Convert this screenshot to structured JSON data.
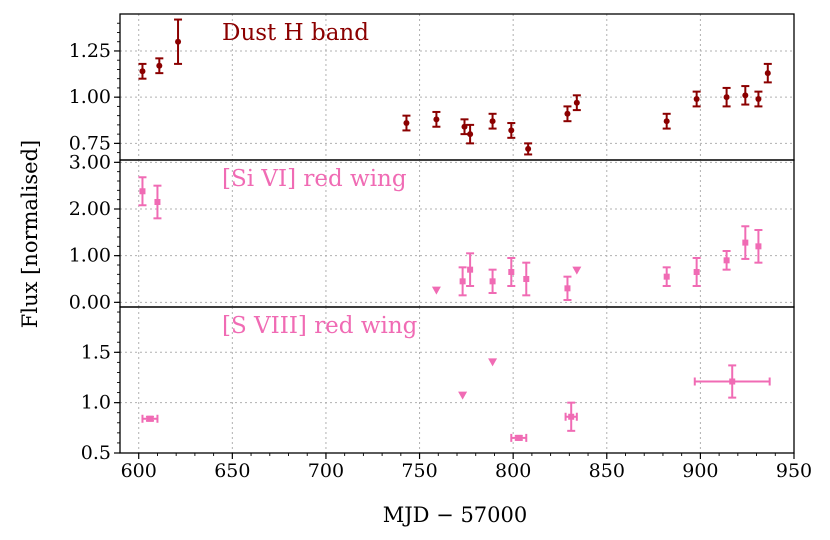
{
  "chart_data": {
    "type": "scatter",
    "xlabel": "MJD − 57000",
    "ylabel": "Flux [normalised]",
    "xlim": [
      590,
      950
    ],
    "x_ticks": [
      600,
      650,
      700,
      750,
      800,
      850,
      900,
      950
    ],
    "x_tick_labels": [
      "600",
      "650",
      "700",
      "750",
      "800",
      "850",
      "900",
      "950"
    ],
    "grid": true,
    "panels": [
      {
        "name": "dust-h-band",
        "title": "Dust H band",
        "color": "#8b0000",
        "ylim": [
          0.66,
          1.45
        ],
        "y_ticks": [
          0.75,
          1.0,
          1.25
        ],
        "y_tick_labels": [
          "0.75",
          "1.00",
          "1.25"
        ],
        "points": [
          {
            "x": 602,
            "y": 1.14,
            "yerr": 0.04
          },
          {
            "x": 611,
            "y": 1.17,
            "yerr": 0.04
          },
          {
            "x": 621,
            "y": 1.3,
            "yerr": 0.12
          },
          {
            "x": 743,
            "y": 0.86,
            "yerr": 0.04
          },
          {
            "x": 759,
            "y": 0.88,
            "yerr": 0.04
          },
          {
            "x": 774,
            "y": 0.84,
            "yerr": 0.04
          },
          {
            "x": 777,
            "y": 0.8,
            "yerr": 0.05
          },
          {
            "x": 789,
            "y": 0.87,
            "yerr": 0.04
          },
          {
            "x": 799,
            "y": 0.82,
            "yerr": 0.04
          },
          {
            "x": 808,
            "y": 0.72,
            "yerr": 0.03
          },
          {
            "x": 829,
            "y": 0.91,
            "yerr": 0.04
          },
          {
            "x": 834,
            "y": 0.97,
            "yerr": 0.04
          },
          {
            "x": 882,
            "y": 0.87,
            "yerr": 0.04
          },
          {
            "x": 898,
            "y": 0.99,
            "yerr": 0.04
          },
          {
            "x": 914,
            "y": 1.0,
            "yerr": 0.05
          },
          {
            "x": 924,
            "y": 1.01,
            "yerr": 0.05
          },
          {
            "x": 931,
            "y": 0.99,
            "yerr": 0.04
          },
          {
            "x": 936,
            "y": 1.13,
            "yerr": 0.05
          }
        ],
        "upper_limits": []
      },
      {
        "name": "si-vi-red-wing",
        "title": "[Si VI] red wing",
        "color": "#f06bb4",
        "ylim": [
          -0.1,
          3.05
        ],
        "y_ticks": [
          0.0,
          1.0,
          2.0,
          3.0
        ],
        "y_tick_labels": [
          "0.00",
          "1.00",
          "2.00",
          "3.00"
        ],
        "points": [
          {
            "x": 602,
            "y": 2.38,
            "yerr": 0.3
          },
          {
            "x": 610,
            "y": 2.15,
            "yerr": 0.35
          },
          {
            "x": 773,
            "y": 0.45,
            "yerr": 0.3
          },
          {
            "x": 777,
            "y": 0.7,
            "yerr": 0.35
          },
          {
            "x": 789,
            "y": 0.45,
            "yerr": 0.25
          },
          {
            "x": 799,
            "y": 0.65,
            "yerr": 0.3
          },
          {
            "x": 807,
            "y": 0.5,
            "yerr": 0.35
          },
          {
            "x": 829,
            "y": 0.3,
            "yerr": 0.25
          },
          {
            "x": 882,
            "y": 0.55,
            "yerr": 0.2
          },
          {
            "x": 898,
            "y": 0.65,
            "yerr": 0.3
          },
          {
            "x": 914,
            "y": 0.9,
            "yerr": 0.2
          },
          {
            "x": 924,
            "y": 1.28,
            "yerr": 0.35
          },
          {
            "x": 931,
            "y": 1.2,
            "yerr": 0.35
          }
        ],
        "upper_limits": [
          {
            "x": 759,
            "y": 0.25
          },
          {
            "x": 834,
            "y": 0.68
          }
        ]
      },
      {
        "name": "s-viii-red-wing",
        "title": "[S VIII] red wing",
        "color": "#f06bb4",
        "ylim": [
          0.5,
          1.95
        ],
        "y_ticks": [
          0.5,
          1.0,
          1.5
        ],
        "y_tick_labels": [
          "0.5",
          "1.0",
          "1.5"
        ],
        "points": [
          {
            "x": 606,
            "y": 0.84,
            "yerr": 0.02,
            "xerr": 4
          },
          {
            "x": 803,
            "y": 0.65,
            "yerr": 0.02,
            "xerr": 4
          },
          {
            "x": 831,
            "y": 0.86,
            "yerr": 0.14,
            "xerr": 3
          },
          {
            "x": 917,
            "y": 1.21,
            "yerr": 0.16,
            "xerr": 20
          }
        ],
        "upper_limits": [
          {
            "x": 773,
            "y": 1.07
          },
          {
            "x": 789,
            "y": 1.4
          }
        ]
      }
    ]
  }
}
